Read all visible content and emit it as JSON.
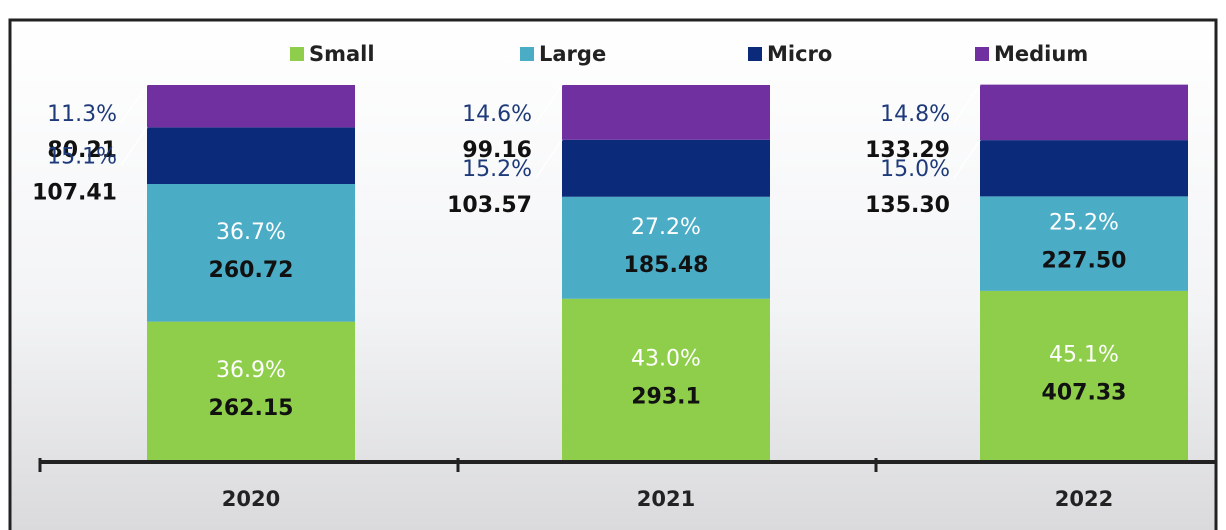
{
  "chart_data": {
    "type": "stacked_bar_100",
    "categories": [
      "2020",
      "2021",
      "2022"
    ],
    "series": [
      {
        "name": "Small",
        "color": "#8fce4a",
        "values": [
          36.9,
          43.0,
          45.1
        ],
        "value_labels": [
          "36.9%",
          "43.0%",
          "45.1%"
        ],
        "amounts": [
          "262.15",
          "293.1",
          "407.33"
        ]
      },
      {
        "name": "Large",
        "color": "#4bacc6",
        "values": [
          36.7,
          27.2,
          25.2
        ],
        "value_labels": [
          "36.7%",
          "27.2%",
          "25.2%"
        ],
        "amounts": [
          "260.72",
          "185.48",
          "227.50"
        ]
      },
      {
        "name": "Micro",
        "color": "#0b2a7a",
        "values": [
          15.1,
          15.2,
          15.0
        ],
        "value_labels": [
          "15.1%",
          "15.2%",
          "15.0%"
        ],
        "amounts": [
          "107.41",
          "103.57",
          "135.30"
        ]
      },
      {
        "name": "Medium",
        "color": "#7030a0",
        "values": [
          11.3,
          14.6,
          14.8
        ],
        "value_labels": [
          "11.3%",
          "14.6%",
          "14.8%"
        ],
        "amounts": [
          "80.21",
          "99.16",
          "133.29"
        ]
      }
    ]
  }
}
